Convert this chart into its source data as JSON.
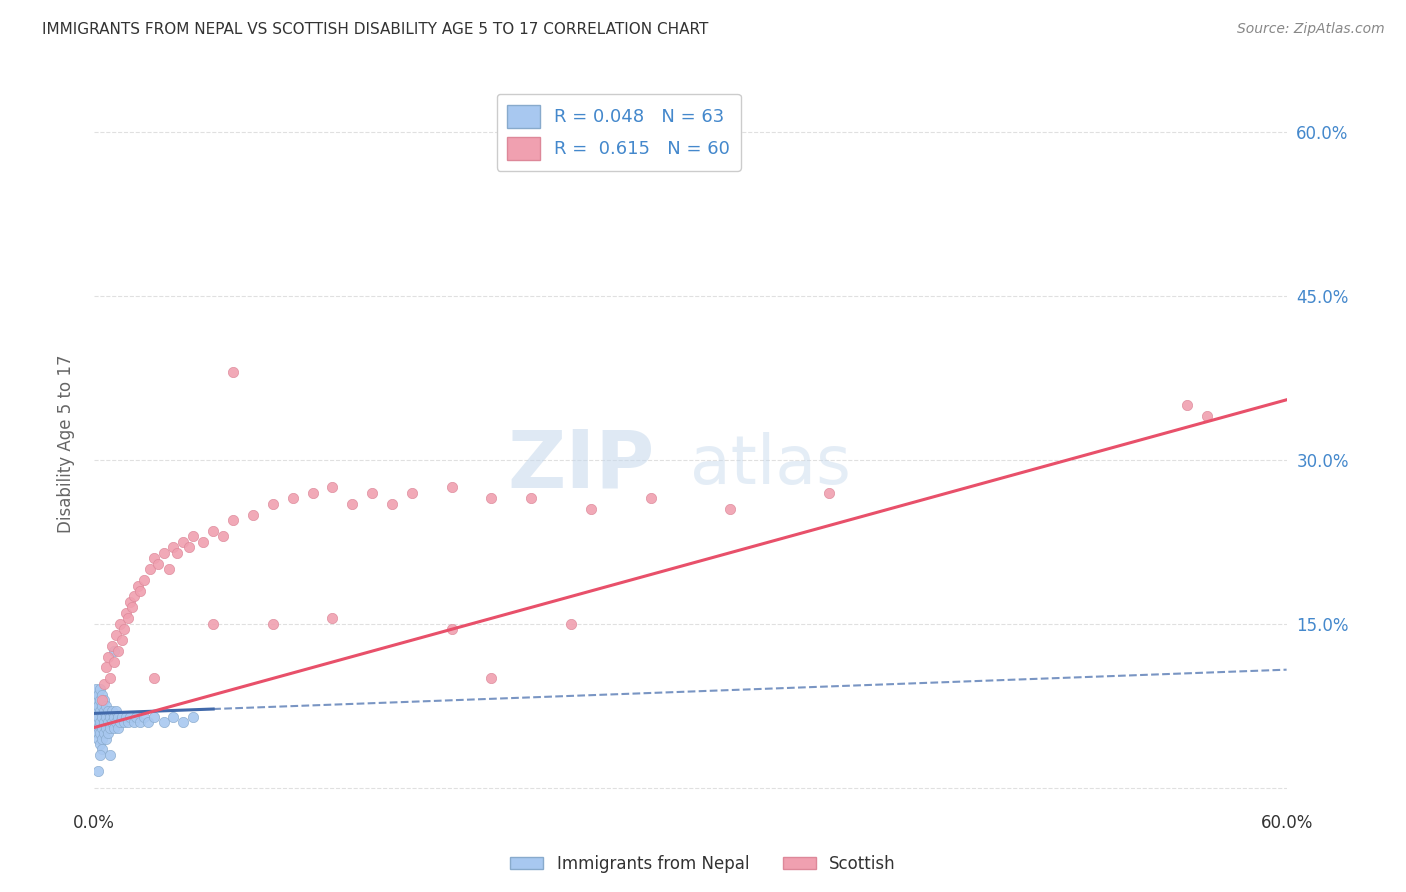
{
  "title": "IMMIGRANTS FROM NEPAL VS SCOTTISH DISABILITY AGE 5 TO 17 CORRELATION CHART",
  "source": "Source: ZipAtlas.com",
  "ylabel": "Disability Age 5 to 17",
  "xlim": [
    0.0,
    0.6
  ],
  "ylim": [
    -0.02,
    0.65
  ],
  "xticks": [
    0.0,
    0.1,
    0.2,
    0.3,
    0.4,
    0.5,
    0.6
  ],
  "xtick_labels": [
    "0.0%",
    "",
    "",
    "",
    "",
    "",
    "60.0%"
  ],
  "ytick_positions": [
    0.0,
    0.15,
    0.3,
    0.45,
    0.6
  ],
  "ytick_labels": [
    "",
    "15.0%",
    "30.0%",
    "45.0%",
    "60.0%"
  ],
  "nepal_R": "0.048",
  "nepal_N": "63",
  "scottish_R": "0.615",
  "scottish_N": "60",
  "nepal_color": "#a8c8f0",
  "scottish_color": "#f0a0b0",
  "nepal_line_color": "#4169aa",
  "scottish_line_color": "#e8506a",
  "watermark": "ZIPatlas",
  "legend_label_nepal": "Immigrants from Nepal",
  "legend_label_scottish": "Scottish",
  "nepal_points_x": [
    0.001,
    0.001,
    0.001,
    0.001,
    0.002,
    0.002,
    0.002,
    0.002,
    0.002,
    0.002,
    0.003,
    0.003,
    0.003,
    0.003,
    0.003,
    0.003,
    0.004,
    0.004,
    0.004,
    0.004,
    0.004,
    0.004,
    0.005,
    0.005,
    0.005,
    0.005,
    0.006,
    0.006,
    0.006,
    0.006,
    0.007,
    0.007,
    0.007,
    0.008,
    0.008,
    0.009,
    0.009,
    0.01,
    0.01,
    0.011,
    0.011,
    0.012,
    0.012,
    0.013,
    0.014,
    0.015,
    0.016,
    0.017,
    0.018,
    0.02,
    0.021,
    0.023,
    0.025,
    0.027,
    0.03,
    0.035,
    0.04,
    0.045,
    0.05,
    0.01,
    0.008,
    0.003,
    0.002
  ],
  "nepal_points_y": [
    0.06,
    0.07,
    0.08,
    0.09,
    0.055,
    0.065,
    0.075,
    0.085,
    0.05,
    0.045,
    0.06,
    0.07,
    0.08,
    0.09,
    0.05,
    0.04,
    0.065,
    0.075,
    0.055,
    0.085,
    0.045,
    0.035,
    0.06,
    0.07,
    0.08,
    0.05,
    0.065,
    0.055,
    0.075,
    0.045,
    0.06,
    0.07,
    0.05,
    0.065,
    0.055,
    0.06,
    0.07,
    0.065,
    0.055,
    0.06,
    0.07,
    0.065,
    0.055,
    0.06,
    0.065,
    0.06,
    0.065,
    0.06,
    0.065,
    0.06,
    0.065,
    0.06,
    0.065,
    0.06,
    0.065,
    0.06,
    0.065,
    0.06,
    0.065,
    0.125,
    0.03,
    0.03,
    0.015
  ],
  "scottish_points_x": [
    0.004,
    0.005,
    0.006,
    0.007,
    0.008,
    0.009,
    0.01,
    0.011,
    0.012,
    0.013,
    0.014,
    0.015,
    0.016,
    0.017,
    0.018,
    0.019,
    0.02,
    0.022,
    0.023,
    0.025,
    0.028,
    0.03,
    0.032,
    0.035,
    0.038,
    0.04,
    0.042,
    0.045,
    0.048,
    0.05,
    0.055,
    0.06,
    0.065,
    0.07,
    0.08,
    0.09,
    0.1,
    0.11,
    0.12,
    0.13,
    0.14,
    0.15,
    0.16,
    0.18,
    0.2,
    0.22,
    0.25,
    0.28,
    0.32,
    0.37,
    0.03,
    0.06,
    0.09,
    0.12,
    0.18,
    0.24,
    0.07,
    0.2,
    0.55,
    0.56
  ],
  "scottish_points_y": [
    0.08,
    0.095,
    0.11,
    0.12,
    0.1,
    0.13,
    0.115,
    0.14,
    0.125,
    0.15,
    0.135,
    0.145,
    0.16,
    0.155,
    0.17,
    0.165,
    0.175,
    0.185,
    0.18,
    0.19,
    0.2,
    0.21,
    0.205,
    0.215,
    0.2,
    0.22,
    0.215,
    0.225,
    0.22,
    0.23,
    0.225,
    0.235,
    0.23,
    0.245,
    0.25,
    0.26,
    0.265,
    0.27,
    0.275,
    0.26,
    0.27,
    0.26,
    0.27,
    0.275,
    0.265,
    0.265,
    0.255,
    0.265,
    0.255,
    0.27,
    0.1,
    0.15,
    0.15,
    0.155,
    0.145,
    0.15,
    0.38,
    0.1,
    0.35,
    0.34
  ],
  "nepal_trend_x": [
    0.0,
    0.06
  ],
  "nepal_trend_y": [
    0.068,
    0.072
  ],
  "scottish_trend_x": [
    0.0,
    0.6
  ],
  "scottish_trend_y": [
    0.055,
    0.355
  ],
  "background_color": "#ffffff",
  "grid_color": "#dddddd",
  "title_color": "#333333",
  "axis_label_color": "#666666",
  "tick_label_color_right": "#4488cc",
  "source_color": "#888888"
}
